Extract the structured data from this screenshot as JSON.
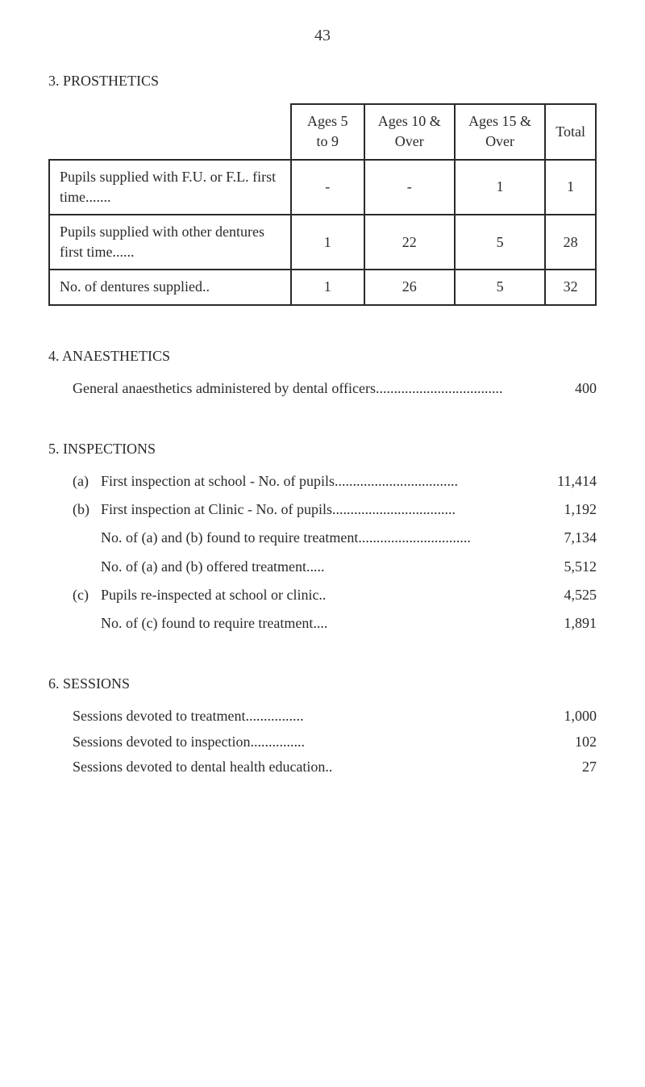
{
  "page_number": "43",
  "sections": {
    "prosthetics": {
      "heading": "3. PROSTHETICS",
      "table": {
        "columns": [
          "",
          "Ages 5 to 9",
          "Ages 10 & Over",
          "Ages 15 & Over",
          "Total"
        ],
        "rows": [
          {
            "label": "Pupils supplied with F.U. or F.L. first time.......",
            "values": [
              "-",
              "-",
              "1",
              "1"
            ]
          },
          {
            "label": "Pupils supplied with other dentures first time......",
            "values": [
              "1",
              "22",
              "5",
              "28"
            ]
          },
          {
            "label": "No. of dentures supplied..",
            "values": [
              "1",
              "26",
              "5",
              "32"
            ]
          }
        ]
      }
    },
    "anaesthetics": {
      "heading": "4. ANAESTHETICS",
      "item_label": "General anaesthetics administered by dental officers...................................",
      "item_value": "400"
    },
    "inspections": {
      "heading": "5. INSPECTIONS",
      "items": [
        {
          "letter": "(a)",
          "label": "First inspection at school - No. of pupils..................................",
          "value": "11,414"
        },
        {
          "letter": "(b)",
          "label": "First inspection at Clinic - No. of pupils..................................",
          "value": "1,192"
        },
        {
          "letter": "",
          "label": "No. of (a) and (b) found to require treatment...............................",
          "value": "7,134"
        },
        {
          "letter": "",
          "label": "No. of (a) and (b) offered treatment.....",
          "value": "5,512"
        },
        {
          "letter": "(c)",
          "label": "Pupils re-inspected at school or clinic..",
          "value": "4,525"
        },
        {
          "letter": "",
          "label": "No. of (c) found to require treatment....",
          "value": "1,891"
        }
      ]
    },
    "sessions": {
      "heading": "6. SESSIONS",
      "items": [
        {
          "label": "Sessions devoted to treatment................",
          "value": "1,000"
        },
        {
          "label": "Sessions devoted to inspection...............",
          "value": "102"
        },
        {
          "label": "Sessions devoted to dental health education..",
          "value": "27"
        }
      ]
    }
  }
}
